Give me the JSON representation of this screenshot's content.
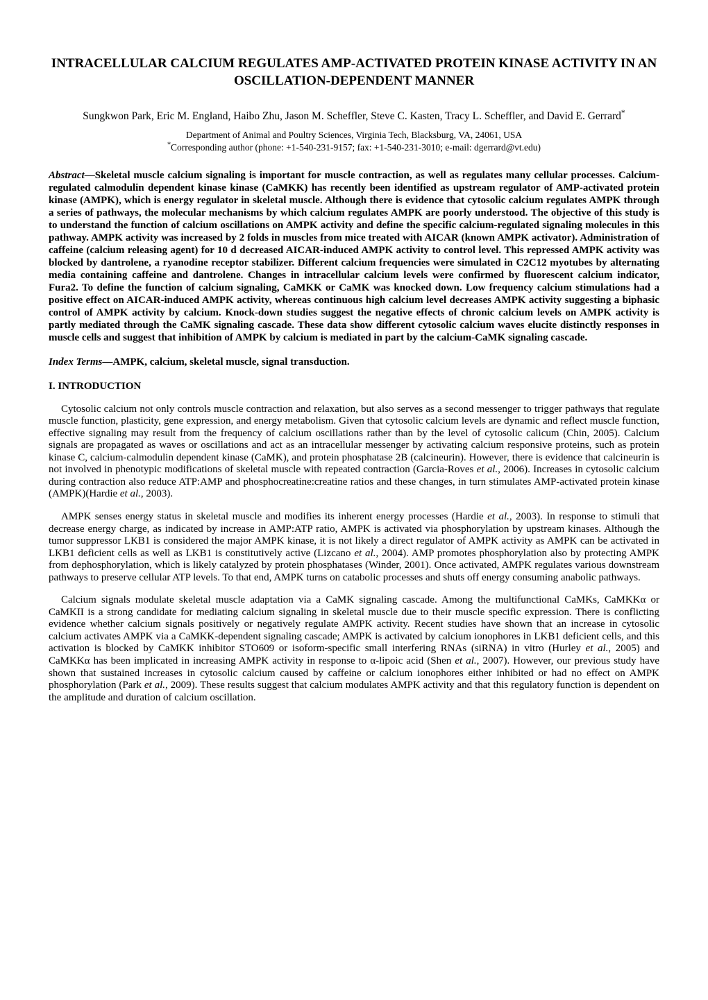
{
  "title": "INTRACELLULAR CALCIUM REGULATES AMP-ACTIVATED PROTEIN KINASE ACTIVITY IN AN OSCILLATION-DEPENDENT MANNER",
  "authors": "Sungkwon Park, Eric M. England, Haibo Zhu, Jason M. Scheffler, Steve C. Kasten, Tracy L. Scheffler, and David E. Gerrard",
  "affiliation": "Department of Animal and Poultry Sciences, Virginia Tech, Blacksburg, VA, 24061, USA",
  "correspondence": "Corresponding author (phone: +1-540-231-9157; fax: +1-540-231-3010; e-mail: dgerrard@vt.edu)",
  "abstract_label": "Abstract",
  "abstract_text": "—Skeletal muscle calcium signaling is important for muscle contraction, as well as regulates many cellular processes. Calcium-regulated calmodulin dependent kinase kinase (CaMKK) has recently been identified as upstream regulator of AMP-activated protein kinase (AMPK), which is energy regulator in skeletal muscle. Although there is evidence that cytosolic calcium regulates AMPK through a series of pathways, the molecular mechanisms by which calcium regulates AMPK are poorly understood. The objective of this study is to understand the function of calcium oscillations on AMPK activity and define the specific calcium-regulated signaling molecules in this pathway. AMPK activity was increased by 2 folds in muscles from mice treated with AICAR (known AMPK activator). Administration of caffeine (calcium releasing agent) for 10 d decreased AICAR-induced AMPK activity to control level. This repressed AMPK activity was blocked by dantrolene, a ryanodine receptor stabilizer. Different calcium frequencies were simulated in C2C12 myotubes by alternating media containing caffeine and dantrolene. Changes in intracellular calcium levels were confirmed by fluorescent calcium indicator, Fura2. To define the function of calcium signaling, CaMKK or CaMK was knocked down. Low frequency calcium stimulations had a positive effect on AICAR-induced AMPK activity, whereas continuous high calcium level decreases AMPK activity suggesting a biphasic control of AMPK activity by calcium. Knock-down studies suggest the negative effects of chronic calcium levels on AMPK activity is partly mediated through the CaMK signaling cascade. These data show different cytosolic calcium waves elucite distinctly responses in muscle cells and suggest that inhibition of AMPK by calcium is mediated in part by the calcium-CaMK signaling cascade.",
  "index_terms_label": "Index Terms",
  "index_terms_text": "—AMPK, calcium, skeletal muscle, signal transduction.",
  "section_heading": "I.  INTRODUCTION",
  "paragraphs": {
    "p1_pre": "Cytosolic calcium not only controls muscle contraction and relaxation, but also serves as a second messenger to trigger pathways that regulate muscle function, plasticity, gene expression, and energy metabolism. Given that cytosolic calcium levels are dynamic and reflect muscle function, effective signaling may result from the frequency of calcium oscillations rather than by the level of cytosolic calicum (Chin, 2005). Calcium signals are propagated as waves or oscillations and act as an intracellular messenger by activating calcium responsive proteins, such as protein kinase C, calcium-calmodulin dependent kinase (CaMK), and protein phosphatase 2B (calcineurin). However, there is evidence that calcineurin is not involved in phenotypic modifications of skeletal muscle with repeated contraction (Garcia-Roves ",
    "p1_em1": "et al.",
    "p1_mid1": ", 2006). Increases in cytosolic calcium during contraction also reduce ATP:AMP and phosphocreatine:creatine ratios and these changes, in turn stimulates AMP-activated protein kinase (AMPK)(Hardie ",
    "p1_em2": "et al.",
    "p1_post": ", 2003).",
    "p2_pre": "AMPK senses energy status in skeletal muscle and modifies its inherent energy processes (Hardie ",
    "p2_em1": "et al.",
    "p2_mid1": ", 2003). In response to stimuli that decrease energy charge, as indicated by increase in AMP:ATP ratio, AMPK is activated via phosphorylation by upstream kinases. Although the tumor suppressor LKB1 is considered the major AMPK kinase, it is not likely a direct regulator of AMPK activity as AMPK can be activated in LKB1 deficient cells as well as LKB1 is constitutively active (Lizcano ",
    "p2_em2": "et al.",
    "p2_post": ", 2004). AMP promotes phosphorylation also by protecting AMPK from dephosphorylation, which is likely catalyzed by protein phosphatases (Winder, 2001). Once activated, AMPK regulates various downstream pathways to preserve cellular ATP levels. To that end, AMPK turns on catabolic processes and shuts off energy consuming anabolic pathways.",
    "p3_pre": "Calcium signals modulate skeletal muscle adaptation via a CaMK signaling cascade. Among the multifunctional CaMKs, CaMKKα or CaMKII is a strong candidate for mediating calcium signaling in skeletal muscle due to their muscle specific expression. There is conflicting evidence whether calcium signals positively or negatively regulate AMPK activity. Recent studies have shown that an increase in cytosolic calcium activates AMPK via a CaMKK-dependent signaling cascade; AMPK is activated by calcium ionophores in LKB1 deficient cells, and this activation is blocked by CaMKK inhibitor STO609 or isoform-specific small interfering RNAs (siRNA) in vitro (Hurley ",
    "p3_em1": "et al.",
    "p3_mid1": ", 2005) and CaMKKα has been implicated in increasing AMPK activity in response to α-lipoic acid (Shen ",
    "p3_em2": "et al.",
    "p3_mid2": ", 2007). However, our previous study have shown that sustained increases in cytosolic calcium caused by caffeine or calcium ionophores either inhibited or had no effect on AMPK phosphorylation (Park ",
    "p3_em3": "et al.",
    "p3_post": ", 2009). These results suggest that calcium modulates AMPK activity and that this regulatory function is dependent on the amplitude and duration of calcium oscillation."
  },
  "sup_star": "*"
}
